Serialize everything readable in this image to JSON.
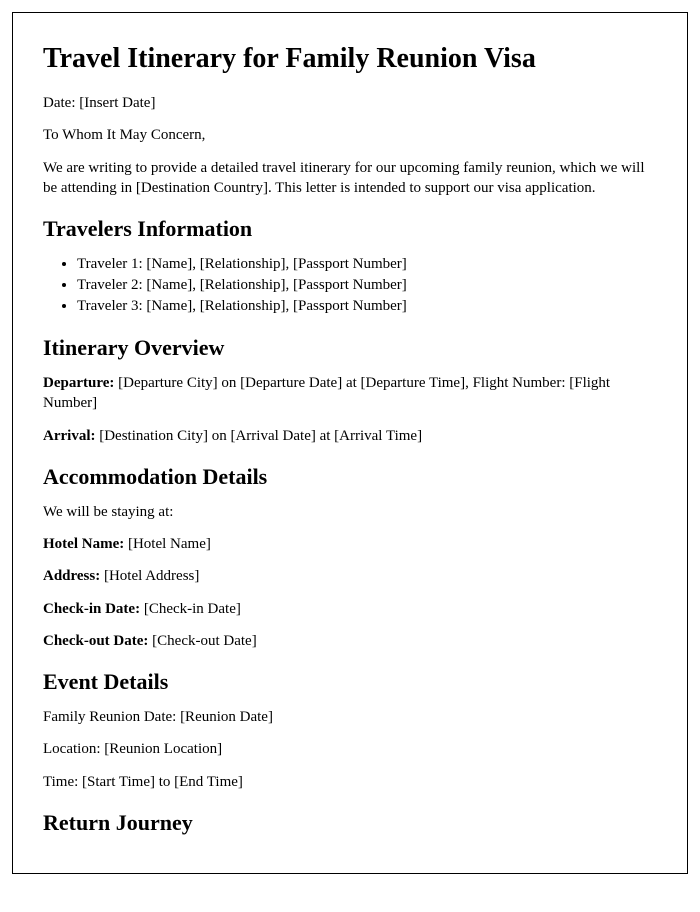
{
  "title": "Travel Itinerary for Family Reunion Visa",
  "date_line": "Date: [Insert Date]",
  "salutation": "To Whom It May Concern,",
  "intro": "We are writing to provide a detailed travel itinerary for our upcoming family reunion, which we will be attending in [Destination Country]. This letter is intended to support our visa application.",
  "travelers": {
    "heading": "Travelers Information",
    "items": [
      "Traveler 1: [Name], [Relationship], [Passport Number]",
      "Traveler 2: [Name], [Relationship], [Passport Number]",
      "Traveler 3: [Name], [Relationship], [Passport Number]"
    ]
  },
  "itinerary": {
    "heading": "Itinerary Overview",
    "departure_label": "Departure:",
    "departure_text": " [Departure City] on [Departure Date] at [Departure Time], Flight Number: [Flight Number]",
    "arrival_label": "Arrival:",
    "arrival_text": " [Destination City] on [Arrival Date] at [Arrival Time]"
  },
  "accommodation": {
    "heading": "Accommodation Details",
    "intro": "We will be staying at:",
    "hotel_label": "Hotel Name:",
    "hotel_text": " [Hotel Name]",
    "address_label": "Address:",
    "address_text": " [Hotel Address]",
    "checkin_label": "Check-in Date:",
    "checkin_text": " [Check-in Date]",
    "checkout_label": "Check-out Date:",
    "checkout_text": " [Check-out Date]"
  },
  "event": {
    "heading": "Event Details",
    "date_line": "Family Reunion Date: [Reunion Date]",
    "location_line": "Location: [Reunion Location]",
    "time_line": "Time: [Start Time] to [End Time]"
  },
  "return_journey": {
    "heading": "Return Journey"
  }
}
